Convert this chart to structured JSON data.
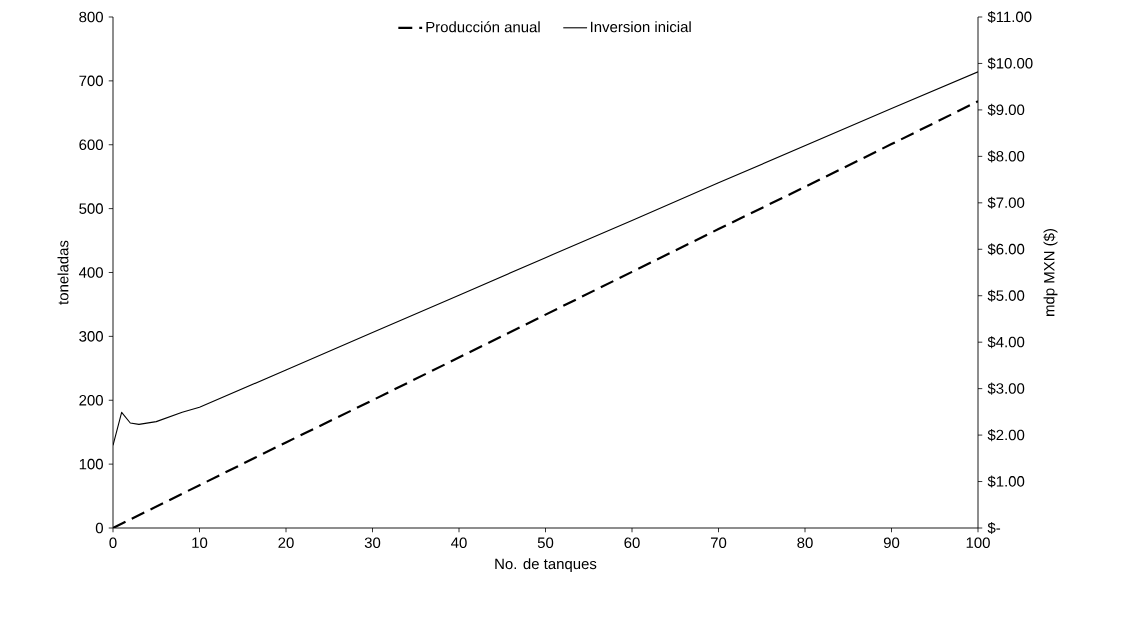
{
  "chart_data": {
    "type": "line",
    "xlabel": "No. de tanques",
    "ylabel": "toneladas",
    "y2label": "mdp MXN ($)",
    "legend": "top",
    "grid": false,
    "marker": "none",
    "xlim": [
      0,
      100
    ],
    "xticks": [
      0,
      10,
      20,
      30,
      40,
      50,
      60,
      70,
      80,
      90,
      100
    ],
    "ylim": [
      0,
      800
    ],
    "yticks": [
      0,
      100,
      200,
      300,
      400,
      500,
      600,
      700,
      800
    ],
    "y2lim": [
      0,
      11
    ],
    "y2ticks": [
      {
        "value": 0,
        "label": "$-"
      },
      {
        "value": 1,
        "label": "$1.00"
      },
      {
        "value": 2,
        "label": "$2.00"
      },
      {
        "value": 3,
        "label": "$3.00"
      },
      {
        "value": 4,
        "label": "$4.00"
      },
      {
        "value": 5,
        "label": "$5.00"
      },
      {
        "value": 6,
        "label": "$6.00"
      },
      {
        "value": 7,
        "label": "$7.00"
      },
      {
        "value": 8,
        "label": "$8.00"
      },
      {
        "value": 9,
        "label": "$9.00"
      },
      {
        "value": 10,
        "label": "$10.00"
      },
      {
        "value": 11,
        "label": "$11.00"
      }
    ],
    "series": [
      {
        "name": "Producción anual",
        "color": "#000000",
        "line_style": "dashed",
        "x": [
          0,
          10,
          20,
          30,
          40,
          50,
          60,
          70,
          80,
          90,
          100
        ],
        "values": [
          0,
          67,
          134,
          200,
          267,
          334,
          401,
          468,
          534,
          601,
          668
        ]
      },
      {
        "name": "Inversion inicial",
        "color": "#000000",
        "line_style": "solid",
        "axis": "y2",
        "x": [
          0,
          1,
          2,
          3,
          5,
          8,
          10,
          20,
          30,
          40,
          50,
          60,
          70,
          80,
          90,
          100
        ],
        "values": [
          1.78,
          2.49,
          2.26,
          2.23,
          2.29,
          2.49,
          2.6,
          3.4,
          4.21,
          5.01,
          5.82,
          6.62,
          7.43,
          8.23,
          9.03,
          9.82
        ]
      }
    ]
  }
}
